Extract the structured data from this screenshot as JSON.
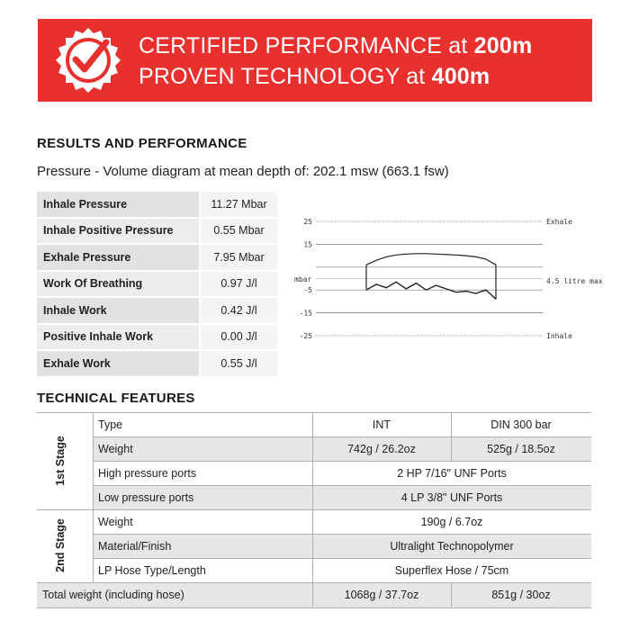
{
  "banner": {
    "line1_text": "CERTIFIED PERFORMANCE at ",
    "line1_strong": "200m",
    "line2_text": "PROVEN TECHNOLOGY at ",
    "line2_strong": "400m",
    "color": "#e8302e",
    "badge_icon": "certified-check-badge"
  },
  "results": {
    "heading": "RESULTS AND PERFORMANCE",
    "subtitle": "Pressure - Volume diagram at mean depth of: 202.1 msw (663.1 fsw)",
    "rows": [
      {
        "label": "Inhale Pressure",
        "value": "11.27 Mbar"
      },
      {
        "label": "Inhale Positive Pressure",
        "value": "0.55 Mbar"
      },
      {
        "label": "Exhale Pressure",
        "value": "7.95 Mbar"
      },
      {
        "label": "Work Of Breathing",
        "value": "0.97 J/l"
      },
      {
        "label": "Inhale Work",
        "value": "0.42 J/l"
      },
      {
        "label": "Positive Inhale Work",
        "value": "0.00 J/l"
      },
      {
        "label": "Exhale Work",
        "value": "0.55 J/l"
      }
    ]
  },
  "chart_data": {
    "type": "line",
    "ylabel": "mbar",
    "yticks": [
      "25",
      "15",
      "-5",
      "-15",
      "-25"
    ],
    "ylim": [
      -25,
      25
    ],
    "annotations": {
      "top": "Exhale",
      "bottom": "Inhale",
      "right": "4.5 litre max"
    },
    "grid": true,
    "series": [
      {
        "values": [
          6,
          8,
          9.5,
          10.3,
          10.7,
          10.9,
          10.9,
          10.7,
          10.5,
          10.3,
          10,
          9.5,
          8.5,
          6
        ]
      },
      {
        "values": [
          -5,
          -2.5,
          -4,
          -1.5,
          -4.5,
          -2,
          -5,
          -3,
          -4.5,
          -6,
          -5.5,
          -6.5,
          -5,
          -9
        ]
      }
    ]
  },
  "tech": {
    "heading": "TECHNICAL FEATURES",
    "stage1_label": "1st Stage",
    "stage2_label": "2nd Stage",
    "header": {
      "label": "Type",
      "int": "INT",
      "din": "DIN 300 bar"
    },
    "stage1": {
      "weight": {
        "label": "Weight",
        "int": "742g / 26.2oz",
        "din": "525g / 18.5oz"
      },
      "hp_ports": {
        "label": "High pressure ports",
        "value": "2 HP 7/16\" UNF Ports"
      },
      "lp_ports": {
        "label": "Low pressure ports",
        "value": "4 LP 3/8\" UNF Ports"
      }
    },
    "stage2": {
      "weight": {
        "label": "Weight",
        "value": "190g / 6.7oz"
      },
      "material": {
        "label": "Material/Finish",
        "value": "Ultralight Technopolymer"
      },
      "hose": {
        "label": "LP Hose Type/Length",
        "value": "Superflex Hose / 75cm"
      }
    },
    "total": {
      "label": "Total weight (including hose)",
      "int": "1068g / 37.7oz",
      "din": "851g / 30oz"
    }
  }
}
